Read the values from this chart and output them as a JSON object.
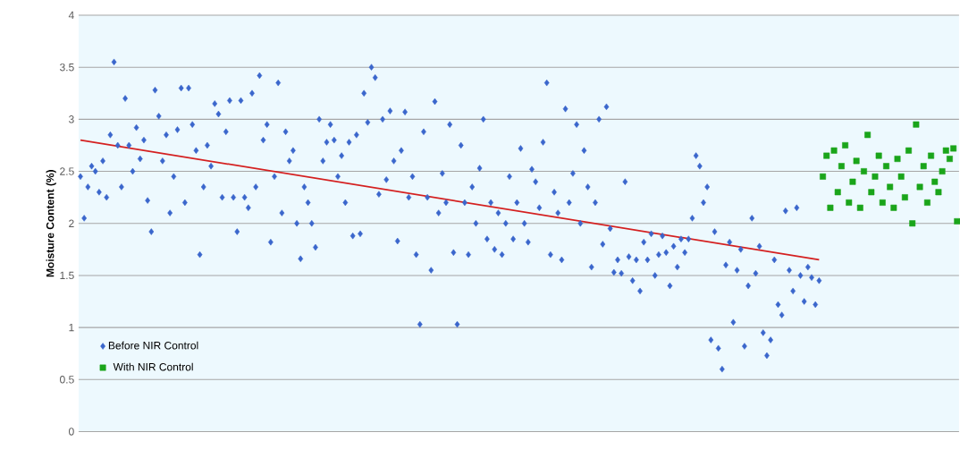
{
  "chart_data": {
    "type": "scatter",
    "ylabel": "Moisture Content (%)",
    "categories": [
      null,
      null,
      null,
      null,
      null,
      null,
      null,
      null,
      null,
      null,
      null,
      null,
      null,
      null,
      null,
      null,
      null,
      null,
      null,
      null,
      null,
      null,
      null,
      null,
      null,
      null,
      null,
      null,
      null,
      null,
      null,
      null,
      null,
      null,
      null,
      null,
      null,
      null,
      null,
      null,
      null,
      null,
      null,
      null,
      null,
      null,
      null,
      null,
      null,
      null,
      null,
      null,
      null,
      null,
      null,
      null,
      null,
      null,
      null,
      null,
      null,
      null,
      null,
      null,
      null,
      null,
      null,
      null,
      null,
      null,
      null,
      null,
      null,
      null,
      null,
      null,
      null,
      null,
      null,
      null,
      null,
      null,
      null,
      null,
      null,
      null,
      null,
      null,
      null,
      null,
      null,
      null,
      null,
      null,
      null,
      null,
      null,
      null,
      null,
      null,
      null,
      null,
      null,
      null,
      null,
      null,
      null,
      null,
      null,
      null,
      null,
      null,
      null,
      null,
      null,
      null,
      null,
      null,
      null,
      null,
      null,
      null,
      null,
      null,
      null,
      null,
      null,
      null,
      null,
      null,
      null,
      null,
      null,
      null,
      null,
      null,
      null,
      null,
      null,
      null,
      null,
      null,
      null,
      null,
      null,
      null,
      null,
      null,
      null,
      null,
      null,
      null,
      null,
      null,
      null,
      null,
      null,
      null,
      null,
      null,
      null,
      null,
      null,
      null,
      null,
      null,
      null,
      null,
      null,
      null,
      null,
      null,
      null,
      null,
      null,
      null,
      null,
      null,
      null,
      null,
      null,
      null,
      null,
      null,
      null,
      null,
      null,
      null,
      null,
      null,
      null,
      null,
      null,
      null,
      null,
      null,
      null,
      null,
      null,
      null,
      null,
      null,
      null,
      null,
      null,
      null,
      null,
      null,
      null,
      null,
      null,
      null,
      null,
      null,
      null,
      null,
      null,
      null,
      null,
      null,
      null,
      null,
      null,
      null,
      null,
      null,
      null,
      null,
      null,
      null,
      null,
      null,
      null,
      null,
      null,
      null
    ],
    "ylim": [
      0,
      4
    ],
    "yticks": [
      0,
      0.5,
      1,
      1.5,
      2,
      2.5,
      3,
      3.5,
      4
    ],
    "tick_labels": "y",
    "grid": "y",
    "legend": "bottom left",
    "series": [
      {
        "name": "Before NIR Control",
        "marker": "diamond",
        "color": "#3a66cc",
        "values": [
          2.45,
          2.05,
          2.35,
          2.55,
          2.5,
          2.3,
          2.6,
          2.25,
          2.85,
          3.55,
          2.75,
          2.35,
          3.2,
          2.75,
          2.5,
          2.92,
          2.62,
          2.8,
          2.22,
          1.92,
          3.28,
          3.03,
          2.6,
          2.85,
          2.1,
          2.45,
          2.9,
          3.3,
          2.2,
          3.3,
          2.95,
          2.7,
          1.7,
          2.35,
          2.75,
          2.55,
          3.15,
          3.05,
          2.25,
          2.88,
          3.18,
          2.25,
          1.92,
          3.18,
          2.25,
          2.15,
          3.25,
          2.35,
          3.42,
          2.8,
          2.95,
          1.82,
          2.45,
          3.35,
          2.1,
          2.88,
          2.6,
          2.7,
          2.0,
          1.66,
          2.35,
          2.2,
          2.0,
          1.77,
          3.0,
          2.6,
          2.78,
          2.95,
          2.8,
          2.45,
          2.65,
          2.2,
          2.78,
          1.88,
          2.85,
          1.9,
          3.25,
          2.97,
          3.5,
          3.4,
          2.28,
          3.0,
          2.42,
          3.08,
          2.6,
          1.83,
          2.7,
          3.07,
          2.25,
          2.45,
          1.7,
          1.03,
          2.88,
          2.25,
          1.55,
          3.17,
          2.1,
          2.48,
          2.2,
          2.95,
          1.72,
          1.03,
          2.75,
          2.2,
          1.7,
          2.35,
          2.0,
          2.53,
          3.0,
          1.85,
          2.2,
          1.75,
          2.1,
          1.7,
          2.0,
          2.45,
          1.85,
          2.2,
          2.72,
          2.0,
          1.82,
          2.52,
          2.4,
          2.15,
          2.78,
          3.35,
          1.7,
          2.3,
          2.1,
          1.65,
          3.1,
          2.2,
          2.48,
          2.95,
          2.0,
          2.7,
          2.35,
          1.58,
          2.2,
          3.0,
          1.8,
          3.12,
          1.95,
          1.53,
          1.65,
          1.52,
          2.4,
          1.68,
          1.45,
          1.65,
          1.35,
          1.82,
          1.65,
          1.9,
          1.5,
          1.7,
          1.88,
          1.72,
          1.4,
          1.78,
          1.58,
          1.85,
          1.72,
          1.85,
          2.05,
          2.65,
          2.55,
          2.2,
          2.35,
          0.88,
          1.92,
          0.8,
          0.6,
          1.6,
          1.82,
          1.05,
          1.55,
          1.75,
          0.82,
          1.4,
          2.05,
          1.52,
          1.78,
          0.95,
          0.73,
          0.88,
          1.65,
          1.22,
          1.12,
          2.12,
          1.55,
          1.35,
          2.15,
          1.5,
          1.25,
          1.58,
          1.48,
          1.22,
          1.45,
          null,
          null,
          null,
          null,
          null,
          null,
          null,
          null,
          null,
          null,
          null,
          null,
          null,
          null,
          null,
          null,
          null,
          null,
          null,
          null,
          null,
          null,
          null,
          null,
          null,
          null,
          null,
          null,
          null,
          null,
          null,
          null,
          null,
          null,
          null,
          null,
          null
        ]
      },
      {
        "name": "With NIR Control",
        "marker": "square",
        "color": "#1aa51a",
        "values": [
          null,
          null,
          null,
          null,
          null,
          null,
          null,
          null,
          null,
          null,
          null,
          null,
          null,
          null,
          null,
          null,
          null,
          null,
          null,
          null,
          null,
          null,
          null,
          null,
          null,
          null,
          null,
          null,
          null,
          null,
          null,
          null,
          null,
          null,
          null,
          null,
          null,
          null,
          null,
          null,
          null,
          null,
          null,
          null,
          null,
          null,
          null,
          null,
          null,
          null,
          null,
          null,
          null,
          null,
          null,
          null,
          null,
          null,
          null,
          null,
          null,
          null,
          null,
          null,
          null,
          null,
          null,
          null,
          null,
          null,
          null,
          null,
          null,
          null,
          null,
          null,
          null,
          null,
          null,
          null,
          null,
          null,
          null,
          null,
          null,
          null,
          null,
          null,
          null,
          null,
          null,
          null,
          null,
          null,
          null,
          null,
          null,
          null,
          null,
          null,
          null,
          null,
          null,
          null,
          null,
          null,
          null,
          null,
          null,
          null,
          null,
          null,
          null,
          null,
          null,
          null,
          null,
          null,
          null,
          null,
          null,
          null,
          null,
          null,
          null,
          null,
          null,
          null,
          null,
          null,
          null,
          null,
          null,
          null,
          null,
          null,
          null,
          null,
          null,
          null,
          null,
          null,
          null,
          null,
          null,
          null,
          null,
          null,
          null,
          null,
          null,
          null,
          null,
          null,
          null,
          null,
          null,
          null,
          null,
          null,
          null,
          null,
          null,
          null,
          null,
          null,
          null,
          null,
          null,
          null,
          null,
          null,
          null,
          null,
          null,
          null,
          null,
          null,
          null,
          null,
          null,
          null,
          null,
          null,
          null,
          null,
          null,
          null,
          null,
          null,
          null,
          null,
          null,
          null,
          null,
          null,
          null,
          null,
          null,
          2.45,
          2.65,
          2.15,
          2.7,
          2.3,
          2.55,
          2.75,
          2.2,
          2.4,
          2.6,
          2.15,
          2.5,
          2.85,
          2.3,
          2.45,
          2.65,
          2.2,
          2.55,
          2.35,
          2.15,
          2.62,
          2.45,
          2.25,
          2.7,
          2.0,
          2.95,
          2.35,
          2.55,
          2.2,
          2.65,
          2.4,
          2.3,
          2.5,
          2.7,
          2.62,
          2.72,
          2.02
        ]
      },
      {
        "type": "line",
        "marker": "none",
        "line_style": "solid",
        "color": "#d42020",
        "values": [
          2.8,
          null,
          null,
          null,
          null,
          null,
          null,
          null,
          null,
          null,
          null,
          null,
          null,
          null,
          null,
          null,
          null,
          null,
          null,
          null,
          null,
          null,
          null,
          null,
          null,
          null,
          null,
          null,
          null,
          null,
          null,
          null,
          null,
          null,
          null,
          null,
          null,
          null,
          null,
          null,
          null,
          null,
          null,
          null,
          null,
          null,
          null,
          null,
          null,
          null,
          null,
          null,
          null,
          null,
          null,
          null,
          null,
          null,
          null,
          null,
          null,
          null,
          null,
          null,
          null,
          null,
          null,
          null,
          null,
          null,
          null,
          null,
          null,
          null,
          null,
          null,
          null,
          null,
          null,
          null,
          null,
          null,
          null,
          null,
          null,
          null,
          null,
          null,
          null,
          null,
          null,
          null,
          null,
          null,
          null,
          null,
          null,
          null,
          null,
          null,
          null,
          null,
          null,
          null,
          null,
          null,
          null,
          null,
          null,
          null,
          null,
          null,
          null,
          null,
          null,
          null,
          null,
          null,
          null,
          null,
          null,
          null,
          null,
          null,
          null,
          null,
          null,
          null,
          null,
          null,
          null,
          null,
          null,
          null,
          null,
          null,
          null,
          null,
          null,
          null,
          null,
          null,
          null,
          null,
          null,
          null,
          null,
          null,
          null,
          null,
          null,
          null,
          null,
          null,
          null,
          null,
          null,
          null,
          null,
          null,
          null,
          null,
          null,
          null,
          null,
          null,
          null,
          null,
          null,
          null,
          null,
          null,
          null,
          null,
          null,
          null,
          null,
          null,
          null,
          null,
          null,
          null,
          null,
          null,
          null,
          null,
          null,
          null,
          null,
          null,
          null,
          null,
          null,
          null,
          null,
          null,
          null,
          null,
          1.65,
          null,
          null,
          null,
          null,
          null,
          null,
          null,
          null,
          null,
          null,
          null,
          null,
          null,
          null,
          null,
          null,
          null,
          null,
          null,
          null,
          null,
          null,
          null,
          null,
          null,
          null,
          null,
          null,
          null,
          null,
          null,
          null,
          null,
          null,
          null,
          null,
          null
        ]
      }
    ]
  }
}
